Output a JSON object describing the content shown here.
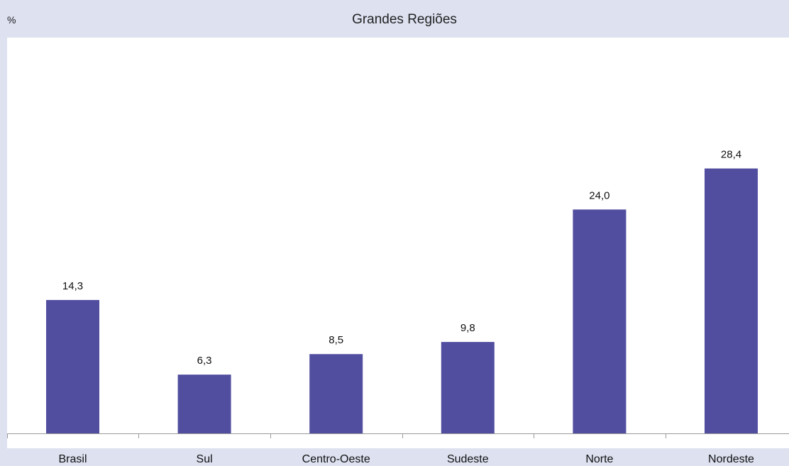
{
  "chart_data": {
    "type": "bar",
    "title": "Grandes Regiões",
    "ylabel": "%",
    "categories": [
      "Brasil",
      "Sul",
      "Centro-Oeste",
      "Sudeste",
      "Norte",
      "Nordeste"
    ],
    "values": [
      14.3,
      6.3,
      8.5,
      9.8,
      24.0,
      28.4
    ],
    "value_labels": [
      "14,3",
      "6,3",
      "8,5",
      "9,8",
      "24,0",
      "28,4"
    ],
    "ylim": [
      0,
      40
    ],
    "grid": false,
    "legend": "none",
    "bar_color": "#514ea0"
  },
  "colors": {
    "header_background": "#dde1f0",
    "plot_background": "#ffffff",
    "bar": "#514ea0"
  }
}
